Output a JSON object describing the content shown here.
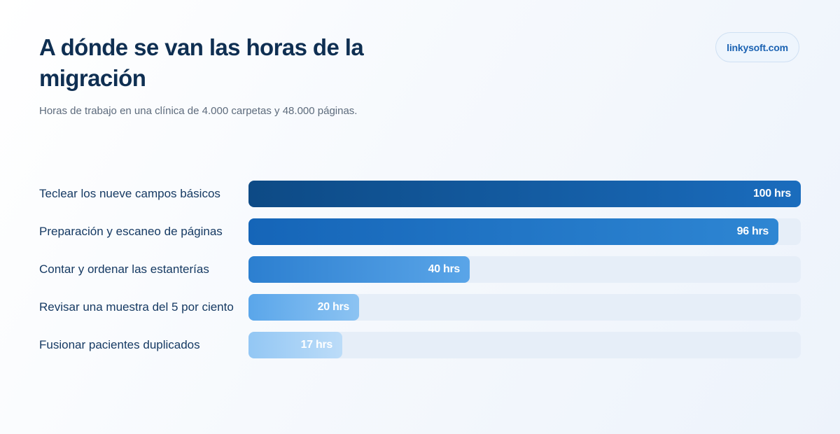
{
  "header": {
    "title": "A dónde se van las horas de la migración",
    "subtitle": "Horas de trabajo en una clínica de 4.000 carpetas y 48.000 páginas.",
    "brand": "linkysoft.com"
  },
  "colors": {
    "title": "#0f2f52",
    "label": "#163a63",
    "track": "#e6eef8",
    "brand": "#1c63b3"
  },
  "chart_data": {
    "type": "bar",
    "orientation": "horizontal",
    "title": "A dónde se van las horas de la migración",
    "subtitle": "Horas de trabajo en una clínica de 4.000 carpetas y 48.000 páginas.",
    "xlim": [
      0,
      100
    ],
    "unit": "hrs",
    "grid": false,
    "categories": [
      "Teclear los nueve campos básicos",
      "Preparación y escaneo de páginas",
      "Contar y ordenar las estanterías",
      "Revisar una muestra del 5 por ciento",
      "Fusionar pacientes duplicados"
    ],
    "values": [
      100,
      96,
      40,
      20,
      17
    ],
    "value_labels": [
      "100 hrs",
      "96 hrs",
      "40 hrs",
      "20 hrs",
      "17 hrs"
    ],
    "bar_colors": [
      [
        "#0d4a85",
        "#1a6cbd"
      ],
      [
        "#1565b8",
        "#2e86d3"
      ],
      [
        "#2c7fd0",
        "#5aa5e8"
      ],
      [
        "#5aa6ea",
        "#8cc3f2"
      ],
      [
        "#93c7f4",
        "#bcdcf8"
      ]
    ]
  }
}
